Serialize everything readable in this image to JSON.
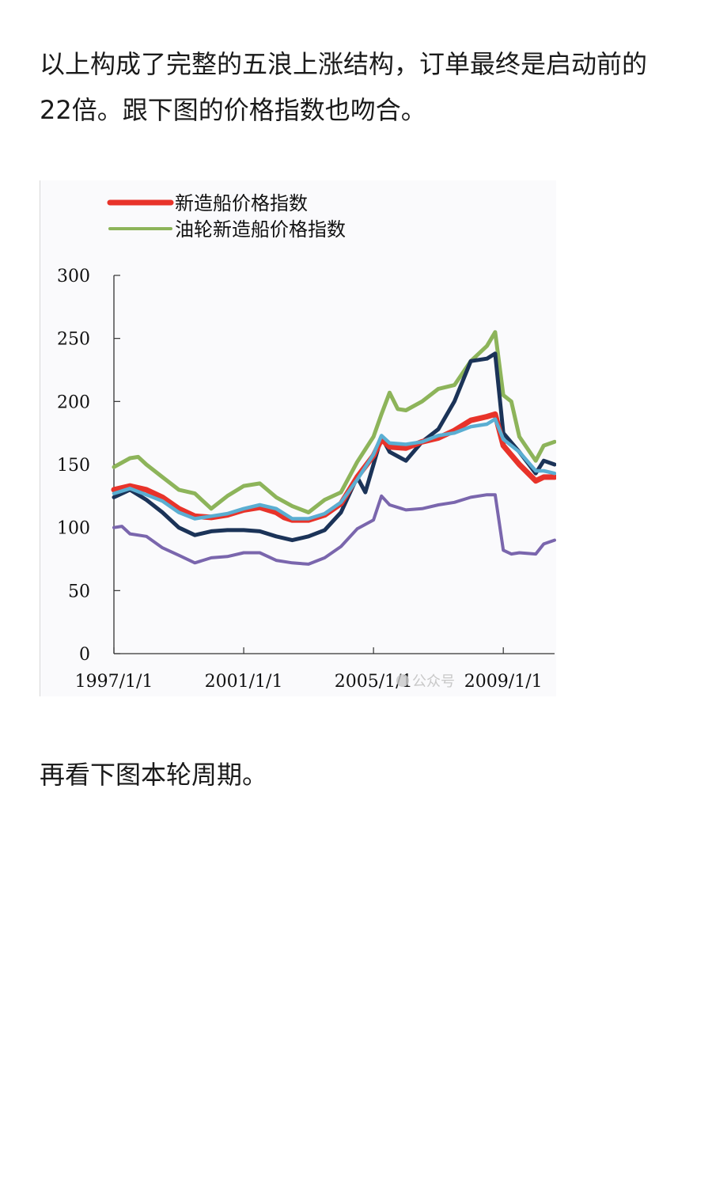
{
  "article": {
    "paragraph_1": "以上构成了完整的五浪上涨结构，订单最终是启动前的22倍。跟下图的价格指数也吻合。",
    "paragraph_2": "再看下图本轮周期。"
  },
  "chart_data": {
    "type": "line",
    "title": "",
    "xlabel": "",
    "ylabel": "",
    "ylim": [
      0,
      300
    ],
    "yticks": [
      "0",
      "50",
      "100",
      "150",
      "200",
      "250",
      "300"
    ],
    "xlim": [
      "1997/1/1",
      "2010/8/1"
    ],
    "xticks": [
      "1997/1/1",
      "2001/1/1",
      "2005/1/1",
      "2009/1/1"
    ],
    "legend": {
      "placement": "top-left",
      "entries": [
        "新造船价格指数",
        "油轮新造船价格指数"
      ]
    },
    "watermark": "公众号",
    "series": [
      {
        "name": "新造船价格指数",
        "color": "#e8332a",
        "points": [
          [
            "1997/1/1",
            130
          ],
          [
            "1997/7/1",
            133
          ],
          [
            "1998/1/1",
            130
          ],
          [
            "1998/7/1",
            124
          ],
          [
            "1999/1/1",
            115
          ],
          [
            "1999/7/1",
            109
          ],
          [
            "2000/1/1",
            108
          ],
          [
            "2000/7/1",
            110
          ],
          [
            "2001/1/1",
            114
          ],
          [
            "2001/7/1",
            116
          ],
          [
            "2002/1/1",
            112
          ],
          [
            "2002/4/1",
            108
          ],
          [
            "2002/7/1",
            106
          ],
          [
            "2003/1/1",
            106
          ],
          [
            "2003/7/1",
            110
          ],
          [
            "2004/1/1",
            119
          ],
          [
            "2004/7/1",
            140
          ],
          [
            "2005/1/1",
            157
          ],
          [
            "2005/4/1",
            170
          ],
          [
            "2005/7/1",
            164
          ],
          [
            "2006/1/1",
            163
          ],
          [
            "2006/7/1",
            168
          ],
          [
            "2007/1/1",
            171
          ],
          [
            "2007/7/1",
            177
          ],
          [
            "2008/1/1",
            185
          ],
          [
            "2008/7/1",
            188
          ],
          [
            "2008/10/1",
            190
          ],
          [
            "2009/1/1",
            165
          ],
          [
            "2009/7/1",
            150
          ],
          [
            "2010/1/1",
            137
          ],
          [
            "2010/4/1",
            140
          ],
          [
            "2010/8/1",
            140
          ]
        ]
      },
      {
        "name": "油轮新造船价格指数",
        "color": "#8db45a",
        "points": [
          [
            "1997/1/1",
            148
          ],
          [
            "1997/7/1",
            155
          ],
          [
            "1997/10/1",
            156
          ],
          [
            "1998/1/1",
            150
          ],
          [
            "1998/7/1",
            140
          ],
          [
            "1999/1/1",
            130
          ],
          [
            "1999/7/1",
            127
          ],
          [
            "2000/1/1",
            115
          ],
          [
            "2000/7/1",
            125
          ],
          [
            "2001/1/1",
            133
          ],
          [
            "2001/7/1",
            135
          ],
          [
            "2002/1/1",
            124
          ],
          [
            "2002/7/1",
            117
          ],
          [
            "2003/1/1",
            112
          ],
          [
            "2003/7/1",
            122
          ],
          [
            "2004/1/1",
            128
          ],
          [
            "2004/7/1",
            152
          ],
          [
            "2005/1/1",
            172
          ],
          [
            "2005/4/1",
            190
          ],
          [
            "2005/7/1",
            207
          ],
          [
            "2005/10/1",
            194
          ],
          [
            "2006/1/1",
            193
          ],
          [
            "2006/7/1",
            200
          ],
          [
            "2007/1/1",
            210
          ],
          [
            "2007/7/1",
            213
          ],
          [
            "2008/1/1",
            232
          ],
          [
            "2008/7/1",
            244
          ],
          [
            "2008/10/1",
            255
          ],
          [
            "2009/1/1",
            205
          ],
          [
            "2009/4/1",
            200
          ],
          [
            "2009/7/1",
            172
          ],
          [
            "2010/1/1",
            153
          ],
          [
            "2010/4/1",
            165
          ],
          [
            "2010/8/1",
            168
          ]
        ]
      },
      {
        "name": "",
        "color": "#1b3358",
        "points": [
          [
            "1997/1/1",
            124
          ],
          [
            "1997/7/1",
            130
          ],
          [
            "1998/1/1",
            122
          ],
          [
            "1998/7/1",
            112
          ],
          [
            "1999/1/1",
            100
          ],
          [
            "1999/7/1",
            94
          ],
          [
            "2000/1/1",
            97
          ],
          [
            "2000/7/1",
            98
          ],
          [
            "2001/1/1",
            98
          ],
          [
            "2001/7/1",
            97
          ],
          [
            "2002/1/1",
            93
          ],
          [
            "2002/7/1",
            90
          ],
          [
            "2003/1/1",
            93
          ],
          [
            "2003/7/1",
            98
          ],
          [
            "2004/1/1",
            112
          ],
          [
            "2004/7/1",
            140
          ],
          [
            "2004/10/1",
            128
          ],
          [
            "2005/1/1",
            150
          ],
          [
            "2005/4/1",
            172
          ],
          [
            "2005/7/1",
            160
          ],
          [
            "2006/1/1",
            153
          ],
          [
            "2006/7/1",
            168
          ],
          [
            "2007/1/1",
            178
          ],
          [
            "2007/7/1",
            200
          ],
          [
            "2008/1/1",
            232
          ],
          [
            "2008/7/1",
            234
          ],
          [
            "2008/10/1",
            238
          ],
          [
            "2009/1/1",
            175
          ],
          [
            "2009/7/1",
            160
          ],
          [
            "2010/1/1",
            143
          ],
          [
            "2010/4/1",
            153
          ],
          [
            "2010/8/1",
            150
          ]
        ]
      },
      {
        "name": "",
        "color": "#7a66ad",
        "points": [
          [
            "1997/1/1",
            100
          ],
          [
            "1997/4/1",
            101
          ],
          [
            "1997/7/1",
            95
          ],
          [
            "1998/1/1",
            93
          ],
          [
            "1998/7/1",
            84
          ],
          [
            "1999/1/1",
            78
          ],
          [
            "1999/7/1",
            72
          ],
          [
            "2000/1/1",
            76
          ],
          [
            "2000/7/1",
            77
          ],
          [
            "2001/1/1",
            80
          ],
          [
            "2001/7/1",
            80
          ],
          [
            "2002/1/1",
            74
          ],
          [
            "2002/7/1",
            72
          ],
          [
            "2003/1/1",
            71
          ],
          [
            "2003/7/1",
            76
          ],
          [
            "2004/1/1",
            85
          ],
          [
            "2004/7/1",
            99
          ],
          [
            "2005/1/1",
            106
          ],
          [
            "2005/4/1",
            125
          ],
          [
            "2005/7/1",
            118
          ],
          [
            "2006/1/1",
            114
          ],
          [
            "2006/7/1",
            115
          ],
          [
            "2007/1/1",
            118
          ],
          [
            "2007/7/1",
            120
          ],
          [
            "2008/1/1",
            124
          ],
          [
            "2008/7/1",
            126
          ],
          [
            "2008/10/1",
            126
          ],
          [
            "2009/1/1",
            82
          ],
          [
            "2009/4/1",
            79
          ],
          [
            "2009/7/1",
            80
          ],
          [
            "2010/1/1",
            79
          ],
          [
            "2010/4/1",
            87
          ],
          [
            "2010/8/1",
            90
          ]
        ]
      },
      {
        "name": "",
        "color": "#5aaed2",
        "points": [
          [
            "1997/1/1",
            127
          ],
          [
            "1997/7/1",
            131
          ],
          [
            "1998/1/1",
            126
          ],
          [
            "1998/7/1",
            121
          ],
          [
            "1999/1/1",
            112
          ],
          [
            "1999/7/1",
            107
          ],
          [
            "2000/1/1",
            109
          ],
          [
            "2000/7/1",
            111
          ],
          [
            "2001/1/1",
            115
          ],
          [
            "2001/7/1",
            118
          ],
          [
            "2002/1/1",
            115
          ],
          [
            "2002/7/1",
            107
          ],
          [
            "2003/1/1",
            107
          ],
          [
            "2003/7/1",
            111
          ],
          [
            "2004/1/1",
            120
          ],
          [
            "2004/7/1",
            138
          ],
          [
            "2005/1/1",
            158
          ],
          [
            "2005/4/1",
            173
          ],
          [
            "2005/7/1",
            167
          ],
          [
            "2006/1/1",
            166
          ],
          [
            "2006/7/1",
            168
          ],
          [
            "2007/1/1",
            173
          ],
          [
            "2007/7/1",
            175
          ],
          [
            "2008/1/1",
            180
          ],
          [
            "2008/7/1",
            182
          ],
          [
            "2008/10/1",
            186
          ],
          [
            "2009/1/1",
            170
          ],
          [
            "2009/7/1",
            160
          ],
          [
            "2010/1/1",
            145
          ],
          [
            "2010/4/1",
            145
          ],
          [
            "2010/8/1",
            143
          ]
        ]
      }
    ]
  }
}
